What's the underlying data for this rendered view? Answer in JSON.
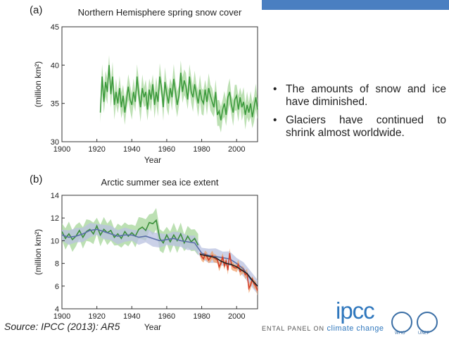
{
  "chart_data": [
    {
      "type": "line",
      "panel_label": "(a)",
      "title": "Northern Hemisphere spring snow cover",
      "xlabel": "Year",
      "ylabel": "(million km²)",
      "xlim": [
        1900,
        2012
      ],
      "ylim": [
        30,
        45
      ],
      "xticks": [
        1900,
        1920,
        1940,
        1960,
        1980,
        2000
      ],
      "yticks": [
        30,
        35,
        40,
        45
      ],
      "series": [
        {
          "color": "#3c9a3c",
          "band_color": "#a6d59a",
          "x": [
            1922,
            1923,
            1924,
            1925,
            1926,
            1927,
            1928,
            1929,
            1930,
            1931,
            1932,
            1933,
            1934,
            1935,
            1936,
            1937,
            1938,
            1939,
            1940,
            1941,
            1942,
            1943,
            1944,
            1945,
            1946,
            1947,
            1948,
            1949,
            1950,
            1951,
            1952,
            1953,
            1954,
            1955,
            1956,
            1957,
            1958,
            1959,
            1960,
            1961,
            1962,
            1963,
            1964,
            1965,
            1966,
            1967,
            1968,
            1969,
            1970,
            1971,
            1972,
            1973,
            1974,
            1975,
            1976,
            1977,
            1978,
            1979,
            1980,
            1981,
            1982,
            1983,
            1984,
            1985,
            1986,
            1987,
            1988,
            1989,
            1990,
            1991,
            1992,
            1993,
            1994,
            1995,
            1996,
            1997,
            1998,
            1999,
            2000,
            2001,
            2002,
            2003,
            2004,
            2005,
            2006,
            2007,
            2008,
            2009,
            2010,
            2011,
            2012
          ],
          "y": [
            33.8,
            38.5,
            35.2,
            37.8,
            36.5,
            40.0,
            36.2,
            38.5,
            34.8,
            36.5,
            35.0,
            37.0,
            34.5,
            36.0,
            33.8,
            35.5,
            37.2,
            35.5,
            34.8,
            36.5,
            35.2,
            38.5,
            36.2,
            34.5,
            37.0,
            35.8,
            36.5,
            34.2,
            36.8,
            35.5,
            37.5,
            34.8,
            36.5,
            35.2,
            38.5,
            37.0,
            34.5,
            37.8,
            36.2,
            35.0,
            37.0,
            35.8,
            38.2,
            36.5,
            34.8,
            36.0,
            39.0,
            36.5,
            38.0,
            37.2,
            35.5,
            38.5,
            36.5,
            35.8,
            37.5,
            36.2,
            35.0,
            36.8,
            35.5,
            35.0,
            36.8,
            35.2,
            37.0,
            36.0,
            35.2,
            34.5,
            36.5,
            33.5,
            34.0,
            32.8,
            34.2,
            35.0,
            33.5,
            35.8,
            36.5,
            34.8,
            33.8,
            35.5,
            36.0,
            34.2,
            35.8,
            34.5,
            35.2,
            33.5,
            34.8,
            33.8,
            35.0,
            33.2,
            34.5,
            35.8,
            34.2
          ],
          "band_half_width": 1.6
        }
      ]
    },
    {
      "type": "line",
      "panel_label": "(b)",
      "title": "Arctic summer sea ice extent",
      "xlabel": "Year",
      "ylabel": "(million km²)",
      "xlim": [
        1900,
        2012
      ],
      "ylim": [
        4,
        14
      ],
      "xticks": [
        1900,
        1920,
        1940,
        1960,
        1980,
        2000
      ],
      "yticks": [
        4,
        6,
        8,
        10,
        12,
        14
      ],
      "series": [
        {
          "color": "#3a8f3a",
          "band_color": "#a6d59a",
          "x": [
            1900,
            1902,
            1904,
            1906,
            1908,
            1910,
            1912,
            1914,
            1916,
            1918,
            1920,
            1922,
            1924,
            1926,
            1928,
            1930,
            1932,
            1934,
            1936,
            1938,
            1940,
            1942,
            1944,
            1946,
            1948,
            1950,
            1952,
            1954,
            1956,
            1958,
            1960,
            1962,
            1964,
            1966,
            1968,
            1970,
            1972,
            1974,
            1976,
            1978
          ],
          "y": [
            10.8,
            10.2,
            10.6,
            10.1,
            10.4,
            10.9,
            10.3,
            10.8,
            11.0,
            10.6,
            11.3,
            10.5,
            11.0,
            10.7,
            10.9,
            10.3,
            10.6,
            10.2,
            10.8,
            10.4,
            10.7,
            10.4,
            11.0,
            11.2,
            10.9,
            11.6,
            11.5,
            11.8,
            10.2,
            9.8,
            10.5,
            9.9,
            10.5,
            10.0,
            10.6,
            9.8,
            10.4,
            9.9,
            10.2,
            9.6
          ],
          "band_half_width": 0.9
        },
        {
          "color": "#5a6fa8",
          "band_color": "#b9c2e0",
          "x": [
            1900,
            1904,
            1908,
            1912,
            1916,
            1920,
            1924,
            1928,
            1932,
            1936,
            1940,
            1944,
            1948,
            1952,
            1956,
            1960,
            1964,
            1968,
            1972,
            1976,
            1980,
            1984,
            1988,
            1992,
            1996,
            2000,
            2004,
            2008,
            2012
          ],
          "y": [
            10.5,
            10.3,
            10.4,
            10.6,
            10.9,
            11.0,
            10.8,
            10.6,
            10.4,
            10.5,
            10.5,
            10.3,
            10.4,
            10.2,
            10.0,
            10.1,
            10.2,
            10.0,
            9.9,
            9.8,
            8.9,
            8.7,
            8.6,
            8.5,
            8.4,
            8.0,
            7.5,
            6.6,
            6.0
          ],
          "band_half_width": 0.6
        },
        {
          "color": "#d4402a",
          "band_color": "#f0a06a",
          "x": [
            1979,
            1980,
            1981,
            1982,
            1983,
            1984,
            1985,
            1986,
            1987,
            1988,
            1989,
            1990,
            1991,
            1992,
            1993,
            1994,
            1995,
            1996,
            1997,
            1998,
            1999,
            2000,
            2001,
            2002,
            2003,
            2004,
            2005,
            2006,
            2007,
            2008,
            2009,
            2010,
            2011,
            2012
          ],
          "y": [
            8.9,
            8.6,
            8.4,
            8.8,
            8.6,
            8.3,
            8.5,
            8.7,
            8.5,
            8.4,
            8.3,
            7.7,
            8.0,
            8.6,
            7.8,
            8.2,
            7.4,
            8.9,
            7.9,
            7.7,
            7.6,
            7.6,
            7.9,
            7.3,
            7.4,
            7.4,
            7.0,
            7.1,
            5.8,
            6.1,
            6.6,
            6.2,
            6.0,
            5.6
          ],
          "band_half_width": 0.35
        },
        {
          "color": "#222222",
          "band_color": "#555555",
          "x": [
            1979,
            1982,
            1985,
            1988,
            1991,
            1994,
            1997,
            2000,
            2003,
            2006,
            2009,
            2012
          ],
          "y": [
            8.8,
            8.7,
            8.6,
            8.5,
            8.2,
            8.0,
            7.9,
            7.7,
            7.4,
            7.1,
            6.5,
            6.0
          ],
          "band_half_width": 0.0
        }
      ]
    }
  ],
  "bullets": [
    "The amounts of snow and ice have diminished.",
    "Glaciers have continued to shrink almost worldwide."
  ],
  "bullet_symbol": "•",
  "source": "Source: IPCC (2013): AR5",
  "logo": {
    "ipcc": "ipcc",
    "panel_text": "ENTAL PANEL ON ",
    "panel_text_emph": "climate change",
    "who": "WHO",
    "unep": "UNEP"
  },
  "colors": {
    "top_bar": "#4a7fc1",
    "logo_blue": "#2f77bd"
  }
}
